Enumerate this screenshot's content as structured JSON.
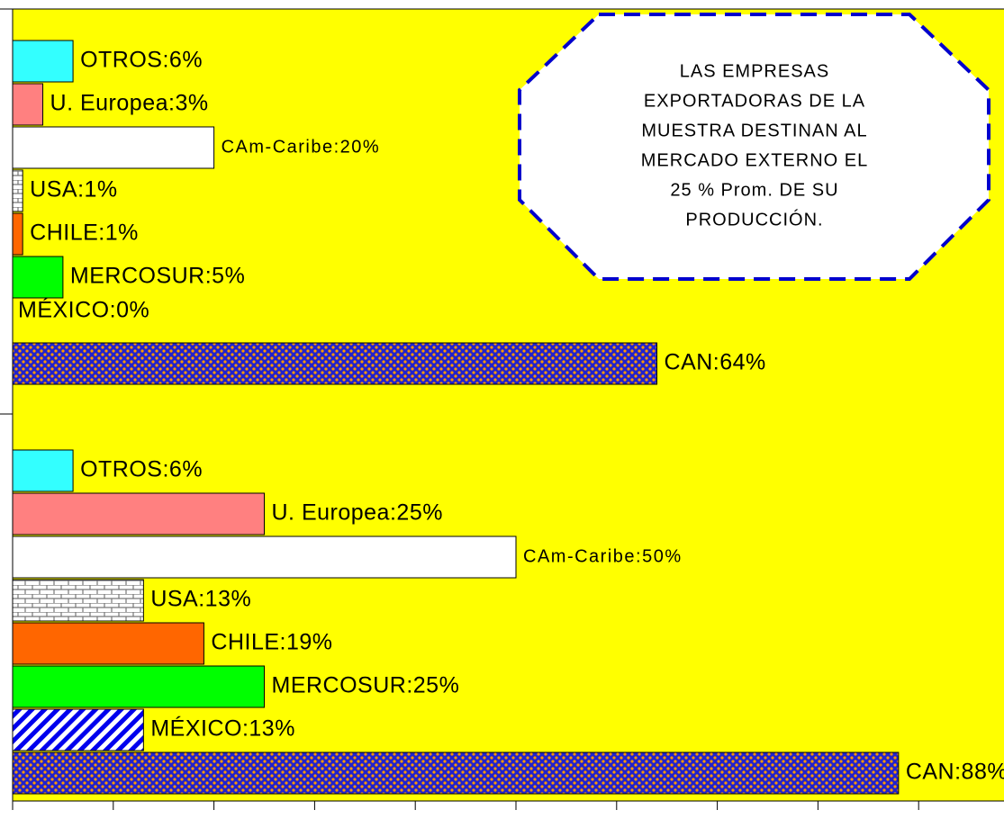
{
  "chart_data": [
    {
      "type": "bar",
      "values": [
        6,
        3,
        20,
        1,
        1,
        5,
        0,
        64
      ],
      "value_labels": [
        "OTROS:6%",
        "U. Europea:3%",
        "CAm-Caribe:20%",
        "USA:1%",
        "CHILE:1%",
        "MERCOSUR:5%",
        "MÉXICO:0%",
        "CAN:64%"
      ],
      "colors": [
        "#33ffff",
        "#ff8080",
        "#ffffff",
        "brick",
        "#ff6600",
        "#00ff00",
        "stripes",
        "checker"
      ],
      "xlim": [
        0,
        100
      ],
      "annotation": [
        "LAS EMPRESAS",
        "EXPORTADORAS DE LA",
        "MUESTRA DESTINAN AL",
        "MERCADO EXTERNO EL",
        "25 % Prom. DE SU",
        "PRODUCCIÓN."
      ]
    },
    {
      "type": "bar",
      "values": [
        6,
        25,
        50,
        13,
        19,
        25,
        13,
        88
      ],
      "value_labels": [
        "OTROS:6%",
        "U. Europea:25%",
        "CAm-Caribe:50%",
        "USA:13%",
        "CHILE:19%",
        "MERCOSUR:25%",
        "MÉXICO:13%",
        "CAN:88%"
      ],
      "colors": [
        "#33ffff",
        "#ff8080",
        "#ffffff",
        "brick",
        "#ff6600",
        "#00ff00",
        "stripes",
        "checker"
      ],
      "xlim": [
        0,
        100
      ],
      "xticks": [
        0,
        10,
        20,
        30,
        40,
        50,
        60,
        70,
        80,
        90
      ]
    }
  ]
}
